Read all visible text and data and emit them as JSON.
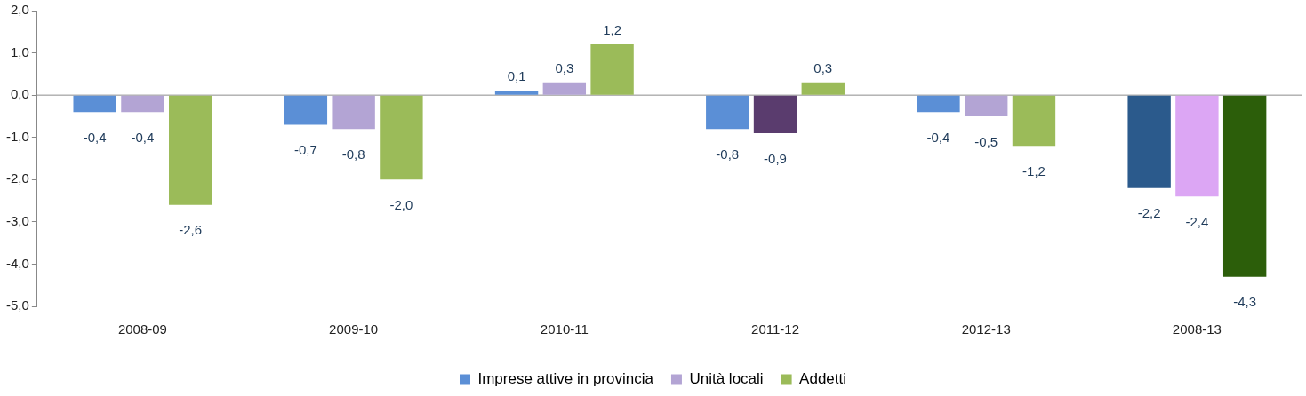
{
  "chart_data": {
    "type": "bar",
    "categories": [
      "2008-09",
      "2009-10",
      "2010-11",
      "2011-12",
      "2012-13",
      "2008-13"
    ],
    "series": [
      {
        "name": "Imprese attive in provincia",
        "color": "#5b8fd6",
        "colors": [
          "#5b8fd6",
          "#5b8fd6",
          "#5b8fd6",
          "#5b8fd6",
          "#5b8fd6",
          "#2b5a8c"
        ],
        "values": [
          -0.4,
          -0.7,
          0.1,
          -0.8,
          -0.4,
          -2.2
        ],
        "value_labels": [
          "-0,4",
          "-0,7",
          "0,1",
          "-0,8",
          "-0,4",
          "-2,2"
        ]
      },
      {
        "name": "Unità locali",
        "color": "#b3a4d4",
        "colors": [
          "#b3a4d4",
          "#b3a4d4",
          "#b3a4d4",
          "#5a3c6e",
          "#b3a4d4",
          "#dca6f4"
        ],
        "values": [
          -0.4,
          -0.8,
          0.3,
          -0.9,
          -0.5,
          -2.4
        ],
        "value_labels": [
          "-0,4",
          "-0,8",
          "0,3",
          "-0,9",
          "-0,5",
          "-2,4"
        ]
      },
      {
        "name": "Addetti",
        "color": "#9bbb59",
        "colors": [
          "#9bbb59",
          "#9bbb59",
          "#9bbb59",
          "#9bbb59",
          "#9bbb59",
          "#2c5e0a"
        ],
        "values": [
          -2.6,
          -2.0,
          1.2,
          0.3,
          -1.2,
          -4.3
        ],
        "value_labels": [
          "-2,6",
          "-2,0",
          "1,2",
          "0,3",
          "-1,2",
          "-4,3"
        ]
      }
    ],
    "ylim": [
      -5,
      2
    ],
    "yticks": [
      {
        "value": -5,
        "label": "-5,0"
      },
      {
        "value": -4,
        "label": "-4,0"
      },
      {
        "value": -3,
        "label": "-3,0"
      },
      {
        "value": -2,
        "label": "-2,0"
      },
      {
        "value": -1,
        "label": "-1,0"
      },
      {
        "value": 0,
        "label": "0,0"
      },
      {
        "value": 1,
        "label": "1,0"
      },
      {
        "value": 2,
        "label": "2,0"
      }
    ],
    "ref_lines": [
      {
        "axis": "y",
        "value": 0,
        "color": "#8c8c8c"
      }
    ],
    "grid": false,
    "legend": "bottom"
  }
}
